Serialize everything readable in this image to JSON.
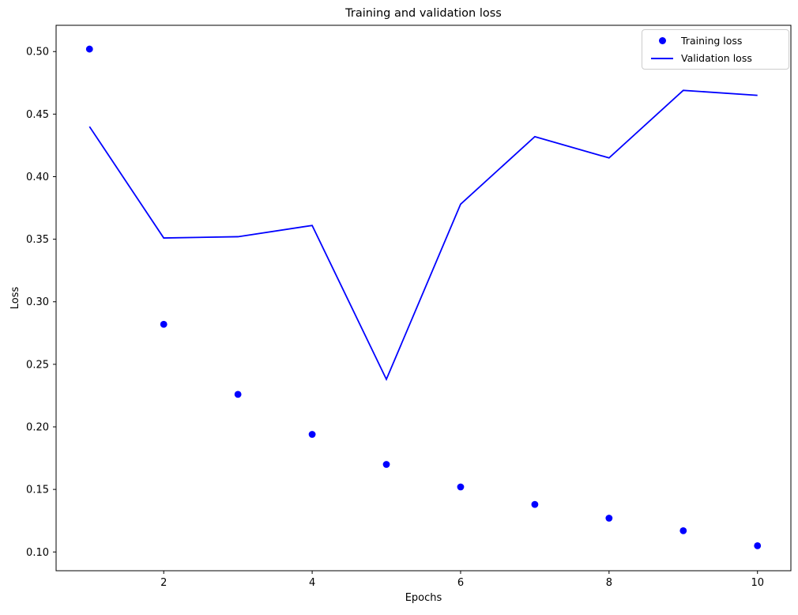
{
  "chart_data": {
    "type": "line",
    "title": "Training and validation loss",
    "xlabel": "Epochs",
    "ylabel": "Loss",
    "x": [
      1,
      2,
      3,
      4,
      5,
      6,
      7,
      8,
      9,
      10
    ],
    "series": [
      {
        "name": "Training loss",
        "style": "scatter",
        "marker": "circle",
        "color": "#0000ff",
        "values": [
          0.502,
          0.282,
          0.226,
          0.194,
          0.17,
          0.152,
          0.138,
          0.127,
          0.117,
          0.105
        ]
      },
      {
        "name": "Validation loss",
        "style": "line",
        "color": "#0000ff",
        "values": [
          0.44,
          0.351,
          0.352,
          0.361,
          0.238,
          0.378,
          0.432,
          0.415,
          0.469,
          0.465
        ]
      }
    ],
    "xticks": [
      2,
      4,
      6,
      8,
      10
    ],
    "yticks": [
      0.1,
      0.15,
      0.2,
      0.25,
      0.3,
      0.35,
      0.4,
      0.45,
      0.5
    ],
    "xlim": [
      0.55,
      10.45
    ],
    "ylim": [
      0.085,
      0.521
    ],
    "grid": false,
    "legend_position": "upper right",
    "background": "#ffffff",
    "text_color": "#000000",
    "spine_color": "#000000"
  }
}
